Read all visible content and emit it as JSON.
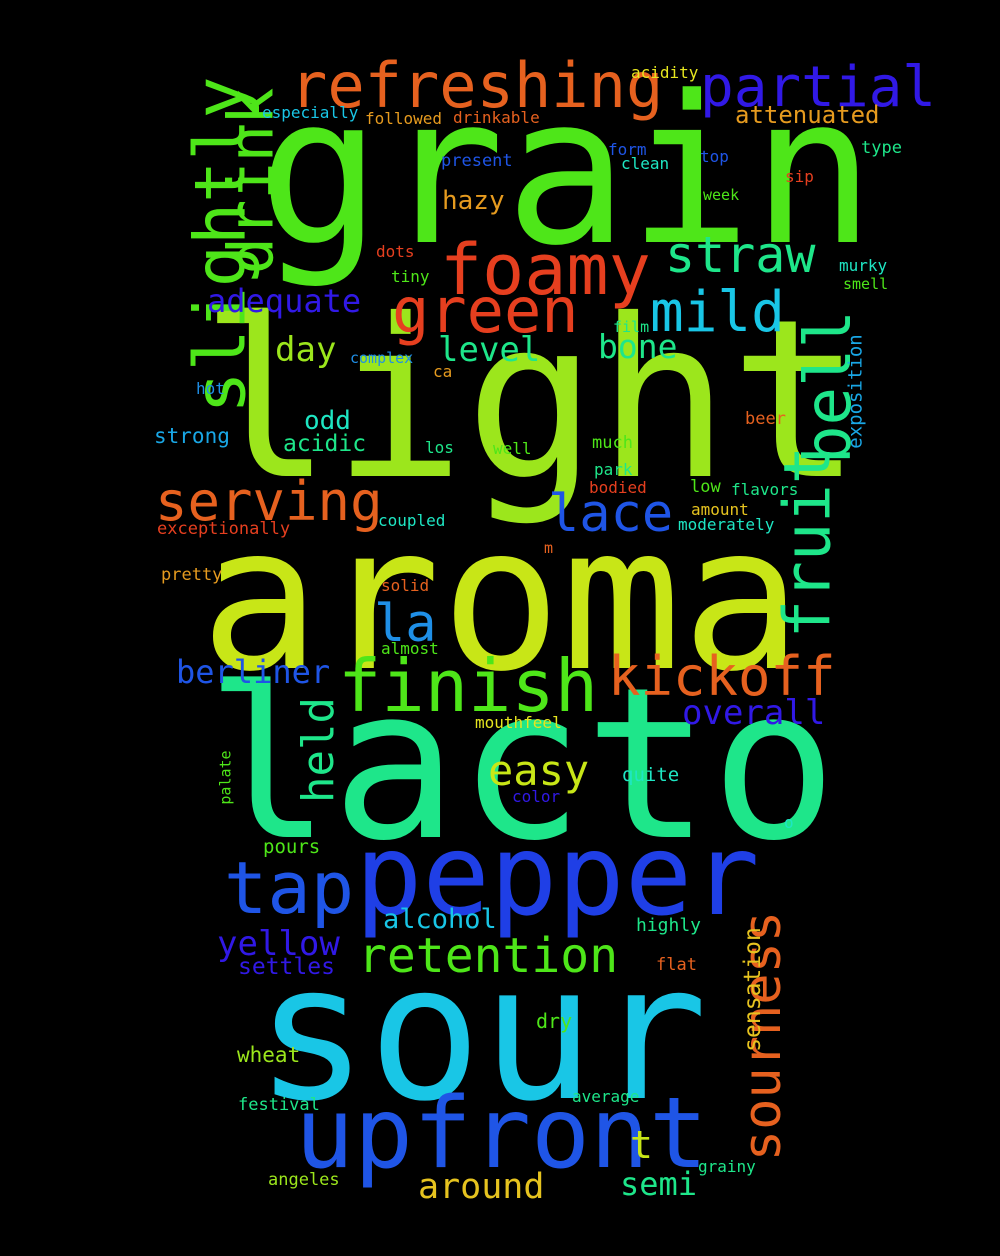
{
  "words": [
    {
      "text": "grain",
      "color": "#4ee619"
    },
    {
      "text": "light",
      "color": "#9ce61c"
    },
    {
      "text": "aroma",
      "color": "#c8e617"
    },
    {
      "text": "lacto",
      "color": "#1ee68a"
    },
    {
      "text": "sour",
      "color": "#19c6e6"
    },
    {
      "text": "pepper",
      "color": "#1f3fe6"
    },
    {
      "text": "upfront",
      "color": "#1f55e6"
    },
    {
      "text": "refreshing",
      "color": "#e6611f"
    },
    {
      "text": "partial",
      "color": "#3119e6"
    },
    {
      "text": "slightly",
      "color": "#4ee619"
    },
    {
      "text": "drink",
      "color": "#4ee619"
    },
    {
      "text": "foamy",
      "color": "#e63f1f"
    },
    {
      "text": "green",
      "color": "#e63f1f"
    },
    {
      "text": "straw",
      "color": "#1ee68a"
    },
    {
      "text": "mild",
      "color": "#19c6e6"
    },
    {
      "text": "adequate",
      "color": "#3119e6"
    },
    {
      "text": "day",
      "color": "#9ce61c"
    },
    {
      "text": "level",
      "color": "#1ee68a"
    },
    {
      "text": "bone",
      "color": "#1ee68a"
    },
    {
      "text": "fruit",
      "color": "#1ee68a"
    },
    {
      "text": "bell",
      "color": "#1ee68a"
    },
    {
      "text": "serving",
      "color": "#e6611f"
    },
    {
      "text": "lace",
      "color": "#1f55e6"
    },
    {
      "text": "la",
      "color": "#1f8fe6"
    },
    {
      "text": "finish",
      "color": "#4ee619"
    },
    {
      "text": "kickoff",
      "color": "#e6611f"
    },
    {
      "text": "berliner",
      "color": "#1f55e6"
    },
    {
      "text": "overall",
      "color": "#3119e6"
    },
    {
      "text": "held",
      "color": "#1ee68a"
    },
    {
      "text": "easy",
      "color": "#c8e617"
    },
    {
      "text": "tap",
      "color": "#1f55e6"
    },
    {
      "text": "yellow",
      "color": "#3119e6"
    },
    {
      "text": "retention",
      "color": "#4ee619"
    },
    {
      "text": "sourness",
      "color": "#e6611f"
    },
    {
      "text": "sensation",
      "color": "#e6c31f"
    },
    {
      "text": "alcohol",
      "color": "#19c6e6"
    },
    {
      "text": "settles",
      "color": "#3119e6"
    },
    {
      "text": "around",
      "color": "#e6c31f"
    },
    {
      "text": "semi",
      "color": "#1ee68a"
    },
    {
      "text": "t",
      "color": "#c8e617"
    },
    {
      "text": "odd",
      "color": "#1ee6c3"
    },
    {
      "text": "acidic",
      "color": "#1ee68a"
    },
    {
      "text": "strong",
      "color": "#19a7e6"
    },
    {
      "text": "hazy",
      "color": "#e69b1f"
    },
    {
      "text": "attenuated",
      "color": "#e69b1f"
    },
    {
      "text": "acidity",
      "color": "#e6e61f"
    },
    {
      "text": "especially",
      "color": "#19c6e6"
    },
    {
      "text": "followed",
      "color": "#e69b1f"
    },
    {
      "text": "drinkable",
      "color": "#e6611f"
    },
    {
      "text": "present",
      "color": "#1f55e6"
    },
    {
      "text": "form",
      "color": "#1f55e6"
    },
    {
      "text": "clean",
      "color": "#1ee6c3"
    },
    {
      "text": "top",
      "color": "#1f55e6"
    },
    {
      "text": "type",
      "color": "#1ee68a"
    },
    {
      "text": "sip",
      "color": "#e63f1f"
    },
    {
      "text": "week",
      "color": "#4ee619"
    },
    {
      "text": "dots",
      "color": "#e63f1f"
    },
    {
      "text": "tiny",
      "color": "#4ee619"
    },
    {
      "text": "murky",
      "color": "#1ee6c3"
    },
    {
      "text": "smell",
      "color": "#4ee619"
    },
    {
      "text": "film",
      "color": "#1ee68a"
    },
    {
      "text": "complex",
      "color": "#1f8fe6"
    },
    {
      "text": "ca",
      "color": "#e69b1f"
    },
    {
      "text": "hot",
      "color": "#1f8fe6"
    },
    {
      "text": "exposition",
      "color": "#19a7e6"
    },
    {
      "text": "beer",
      "color": "#e6611f"
    },
    {
      "text": "los",
      "color": "#1ee68a"
    },
    {
      "text": "well",
      "color": "#4ee619"
    },
    {
      "text": "much",
      "color": "#4ee619"
    },
    {
      "text": "park",
      "color": "#1ee68a"
    },
    {
      "text": "bodied",
      "color": "#e63f1f"
    },
    {
      "text": "low",
      "color": "#4ee619"
    },
    {
      "text": "flavors",
      "color": "#1ee68a"
    },
    {
      "text": "amount",
      "color": "#e6c31f"
    },
    {
      "text": "moderately",
      "color": "#1ee6c3"
    },
    {
      "text": "coupled",
      "color": "#1ee6c3"
    },
    {
      "text": "exceptionally",
      "color": "#e63f1f"
    },
    {
      "text": "m",
      "color": "#e6611f"
    },
    {
      "text": "pretty",
      "color": "#e69b1f"
    },
    {
      "text": "solid",
      "color": "#e6611f"
    },
    {
      "text": "almost",
      "color": "#4ee619"
    },
    {
      "text": "mouthfeel",
      "color": "#e6e61f"
    },
    {
      "text": "palate",
      "color": "#4ee619"
    },
    {
      "text": "quite",
      "color": "#1ee6c3"
    },
    {
      "text": "color",
      "color": "#3119e6"
    },
    {
      "text": "o",
      "color": "#1ee6c3"
    },
    {
      "text": "pours",
      "color": "#4ee619"
    },
    {
      "text": "highly",
      "color": "#1ee68a"
    },
    {
      "text": "flat",
      "color": "#e6611f"
    },
    {
      "text": "dry",
      "color": "#4ee619"
    },
    {
      "text": "wheat",
      "color": "#9ce61c"
    },
    {
      "text": "festival",
      "color": "#1ee68a"
    },
    {
      "text": "average",
      "color": "#1ee68a"
    },
    {
      "text": "grainy",
      "color": "#1ee68a"
    },
    {
      "text": "angeles",
      "color": "#9ce61c"
    }
  ]
}
